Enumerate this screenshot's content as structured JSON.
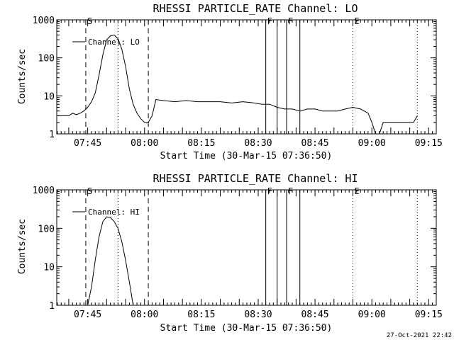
{
  "chart_data": [
    {
      "type": "line",
      "title": "RHESSI PARTICLE_RATE Channel: LO",
      "xlabel": "Start Time (30-Mar-15 07:36:50)",
      "ylabel": "Counts/sec",
      "yscale": "log",
      "ylim": [
        1,
        1000
      ],
      "xlim": [
        "07:36:50",
        "09:17:00"
      ],
      "yticks": [
        "1",
        "10",
        "100",
        "1000"
      ],
      "xticks": [
        "07:45",
        "08:00",
        "08:15",
        "08:30",
        "08:45",
        "09:00",
        "09:15"
      ],
      "legend": "top-left",
      "series": [
        {
          "name": "Channel: LO",
          "x": [
            "07:37",
            "07:38",
            "07:39",
            "07:40",
            "07:41",
            "07:42",
            "07:43",
            "07:44",
            "07:45",
            "07:46",
            "07:47",
            "07:48",
            "07:49",
            "07:50",
            "07:51",
            "07:52",
            "07:53",
            "07:54",
            "07:55",
            "07:56",
            "07:57",
            "07:58",
            "07:59",
            "08:00",
            "08:01",
            "08:02",
            "08:03",
            "08:05",
            "08:08",
            "08:11",
            "08:14",
            "08:17",
            "08:20",
            "08:23",
            "08:26",
            "08:29",
            "08:31",
            "08:33",
            "08:35",
            "08:37",
            "08:39",
            "08:41",
            "08:43",
            "08:45",
            "08:47",
            "08:49",
            "08:51",
            "08:53",
            "08:55",
            "08:57",
            "08:58",
            "08:59",
            "09:00",
            "09:01",
            "09:02",
            "09:03",
            "09:05",
            "09:08",
            "09:11",
            "09:12"
          ],
          "values": [
            3,
            3,
            3,
            3,
            3.5,
            3.2,
            3.5,
            4,
            5,
            7,
            12,
            35,
            120,
            300,
            380,
            400,
            320,
            170,
            60,
            15,
            6,
            3.5,
            2.5,
            2,
            2,
            3,
            8,
            7.5,
            7,
            7.5,
            7,
            7,
            7,
            6.5,
            7,
            6.5,
            6,
            6,
            5,
            4.5,
            4.5,
            4,
            4.5,
            4.5,
            4,
            4,
            4,
            4.5,
            5,
            4.5,
            4,
            3.5,
            2,
            1,
            1,
            2,
            2,
            2,
            2,
            3
          ]
        }
      ],
      "flags": [
        {
          "label": "S",
          "time": "07:44:30",
          "style": "dashed"
        },
        {
          "label": "",
          "time": "07:53:00",
          "style": "dotted"
        },
        {
          "label": "",
          "time": "08:01:00",
          "style": "dashed"
        },
        {
          "label": "F",
          "time": "08:32:00",
          "style": "solid"
        },
        {
          "label": "",
          "time": "08:35:00",
          "style": "solid"
        },
        {
          "label": "F",
          "time": "08:37:30",
          "style": "solid"
        },
        {
          "label": "",
          "time": "08:41:00",
          "style": "solid"
        },
        {
          "label": "E",
          "time": "08:55:00",
          "style": "dotted"
        },
        {
          "label": "",
          "time": "09:12:00",
          "style": "dotted"
        }
      ]
    },
    {
      "type": "line",
      "title": "RHESSI PARTICLE_RATE Channel: HI",
      "xlabel": "Start Time (30-Mar-15 07:36:50)",
      "ylabel": "Counts/sec",
      "yscale": "log",
      "ylim": [
        1,
        1000
      ],
      "xlim": [
        "07:36:50",
        "09:17:00"
      ],
      "yticks": [
        "1",
        "10",
        "100",
        "1000"
      ],
      "xticks": [
        "07:45",
        "08:00",
        "08:15",
        "08:30",
        "08:45",
        "09:00",
        "09:15"
      ],
      "legend": "top-left",
      "series": [
        {
          "name": "Channel: HI",
          "x": [
            "07:45",
            "07:46",
            "07:47",
            "07:48",
            "07:49",
            "07:50",
            "07:51",
            "07:52",
            "07:53",
            "07:54",
            "07:55",
            "07:56",
            "07:57"
          ],
          "values": [
            1,
            3,
            15,
            60,
            150,
            200,
            190,
            150,
            100,
            45,
            15,
            4,
            1
          ]
        }
      ],
      "flags": [
        {
          "label": "S",
          "time": "07:44:30",
          "style": "dashed"
        },
        {
          "label": "",
          "time": "07:53:00",
          "style": "dotted"
        },
        {
          "label": "",
          "time": "08:01:00",
          "style": "dashed"
        },
        {
          "label": "F",
          "time": "08:32:00",
          "style": "solid"
        },
        {
          "label": "",
          "time": "08:35:00",
          "style": "solid"
        },
        {
          "label": "F",
          "time": "08:37:30",
          "style": "solid"
        },
        {
          "label": "",
          "time": "08:41:00",
          "style": "solid"
        },
        {
          "label": "E",
          "time": "08:55:00",
          "style": "dotted"
        },
        {
          "label": "",
          "time": "09:12:00",
          "style": "dotted"
        }
      ]
    }
  ],
  "timestamp": "27-Oct-2021 22:42"
}
